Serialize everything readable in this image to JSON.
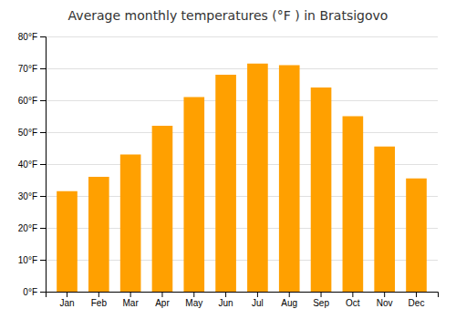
{
  "chart_data": {
    "type": "bar",
    "title": "Average monthly temperatures (°F ) in Bratsigovo",
    "categories": [
      "Jan",
      "Feb",
      "Mar",
      "Apr",
      "May",
      "Jun",
      "Jul",
      "Aug",
      "Sep",
      "Oct",
      "Nov",
      "Dec"
    ],
    "values": [
      31.5,
      36.0,
      43.0,
      52.0,
      61.0,
      68.0,
      71.5,
      71.0,
      64.0,
      55.0,
      45.5,
      35.5
    ],
    "color": "#FFA000",
    "ylim": [
      0,
      80
    ],
    "yticks": [
      {
        "value": 0,
        "label": "0°F"
      },
      {
        "value": 10,
        "label": "10°F"
      },
      {
        "value": 20,
        "label": "20°F"
      },
      {
        "value": 30,
        "label": "30°F"
      },
      {
        "value": 40,
        "label": "40°F"
      },
      {
        "value": 50,
        "label": "50°F"
      },
      {
        "value": 60,
        "label": "60°F"
      },
      {
        "value": 70,
        "label": "70°F"
      },
      {
        "value": 80,
        "label": "80°F"
      }
    ],
    "grid": true
  }
}
